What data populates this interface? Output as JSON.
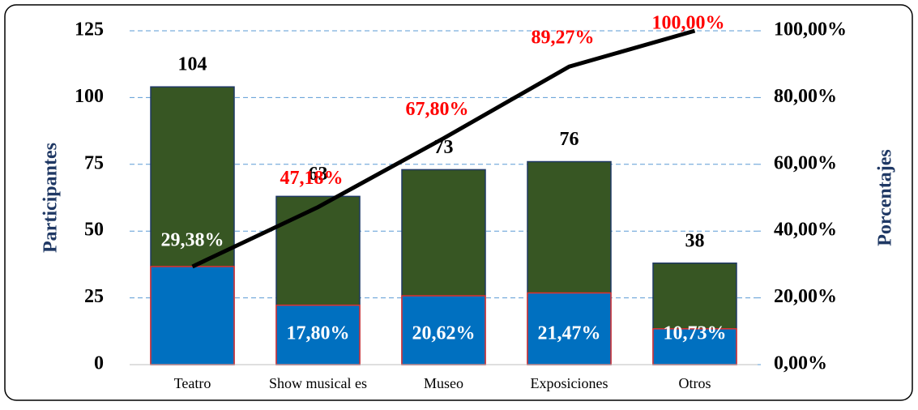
{
  "chart_data": {
    "type": "bar",
    "categories": [
      "Teatro",
      "Show musical es",
      "Museo",
      "Exposiciones",
      "Otros"
    ],
    "series": [
      {
        "type": "bar",
        "color": "#375623",
        "values": [
          104,
          63,
          73,
          76,
          38
        ]
      },
      {
        "type": "bar",
        "color": "#0070c0",
        "axis": "y2",
        "values": [
          29.38,
          17.8,
          20.62,
          21.47,
          10.73
        ],
        "value_labels": [
          "29,38%",
          "17,80%",
          "20,62%",
          "21,47%",
          "10,73%"
        ]
      },
      {
        "type": "line",
        "color": "#000000",
        "axis": "y2",
        "values": [
          29.38,
          47.18,
          67.8,
          89.27,
          100.0
        ],
        "value_labels": [
          null,
          "47,18%",
          "67,80%",
          "89,27%",
          "100,00%"
        ]
      }
    ],
    "ylabel": "Participantes",
    "y2label": "Porcentajes",
    "ylim": [
      0,
      125
    ],
    "yticks": [
      0,
      25,
      50,
      75,
      100,
      125
    ],
    "y2lim": [
      0,
      100
    ],
    "y2ticks": [
      {
        "value": 0,
        "label": "0,00%"
      },
      {
        "value": 20,
        "label": "20,00%"
      },
      {
        "value": 40,
        "label": "40,00%"
      },
      {
        "value": 60,
        "label": "60,00%"
      },
      {
        "value": 80,
        "label": "80,00%"
      },
      {
        "value": 100,
        "label": "100,00%"
      }
    ],
    "grid": true
  }
}
